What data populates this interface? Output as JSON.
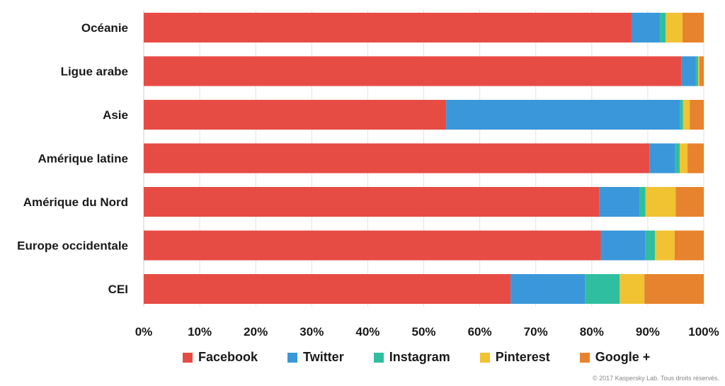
{
  "chart_data": {
    "type": "bar",
    "orientation": "horizontal",
    "stacked": true,
    "title": "",
    "xlabel": "",
    "ylabel": "",
    "xlim": [
      0,
      100
    ],
    "x_ticks": [
      "0%",
      "10%",
      "20%",
      "30%",
      "40%",
      "50%",
      "60%",
      "70%",
      "80%",
      "90%",
      "100%"
    ],
    "grid": true,
    "legend_position": "bottom",
    "categories": [
      "Océanie",
      "Ligue arabe",
      "Asie",
      "Amérique latine",
      "Amérique du Nord",
      "Europe occidentale",
      "CEI"
    ],
    "series": [
      {
        "name": "Facebook",
        "color": "#e74c44",
        "values": [
          87.1,
          96.0,
          54.0,
          90.3,
          81.3,
          81.6,
          65.5
        ]
      },
      {
        "name": "Twitter",
        "color": "#3a98da",
        "values": [
          5.0,
          2.6,
          41.8,
          4.6,
          7.2,
          8.0,
          13.3
        ]
      },
      {
        "name": "Instagram",
        "color": "#2fbfa0",
        "values": [
          1.1,
          0.4,
          0.5,
          0.8,
          1.1,
          1.7,
          6.2
        ]
      },
      {
        "name": "Pinterest",
        "color": "#f1c232",
        "values": [
          3.0,
          0.2,
          1.2,
          1.4,
          5.4,
          3.5,
          4.4
        ]
      },
      {
        "name": "Google +",
        "color": "#e7832e",
        "values": [
          3.8,
          0.8,
          2.5,
          2.9,
          5.0,
          5.2,
          10.6
        ]
      }
    ]
  },
  "copyright": "© 2017 Kaspersky Lab. Tous droits réservés."
}
